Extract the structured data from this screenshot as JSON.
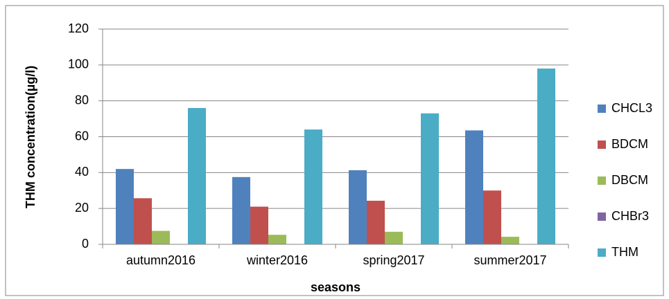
{
  "chart_data": {
    "type": "bar",
    "xlabel": "seasons",
    "ylabel": "THM concentration(µg/l)",
    "categories": [
      "autumn2016",
      "winter2016",
      "spring2017",
      "summer2017"
    ],
    "series": [
      {
        "name": "CHCL3",
        "color": "#4f81bd",
        "values": [
          42,
          37.5,
          41.3,
          63.5
        ]
      },
      {
        "name": "BDCM",
        "color": "#c0504d",
        "values": [
          25.7,
          21,
          24.3,
          30
        ]
      },
      {
        "name": "DBCM",
        "color": "#9bbb59",
        "values": [
          7.5,
          5.3,
          7,
          4.2
        ]
      },
      {
        "name": "CHBr3",
        "color": "#8064a2",
        "values": [
          0,
          0,
          0,
          0
        ]
      },
      {
        "name": "THM",
        "color": "#4bacc6",
        "values": [
          76,
          64,
          73,
          98
        ]
      }
    ],
    "ylim": [
      0,
      120
    ],
    "yticks": [
      0,
      20,
      40,
      60,
      80,
      100,
      120
    ],
    "grid": true,
    "legend": "right"
  }
}
